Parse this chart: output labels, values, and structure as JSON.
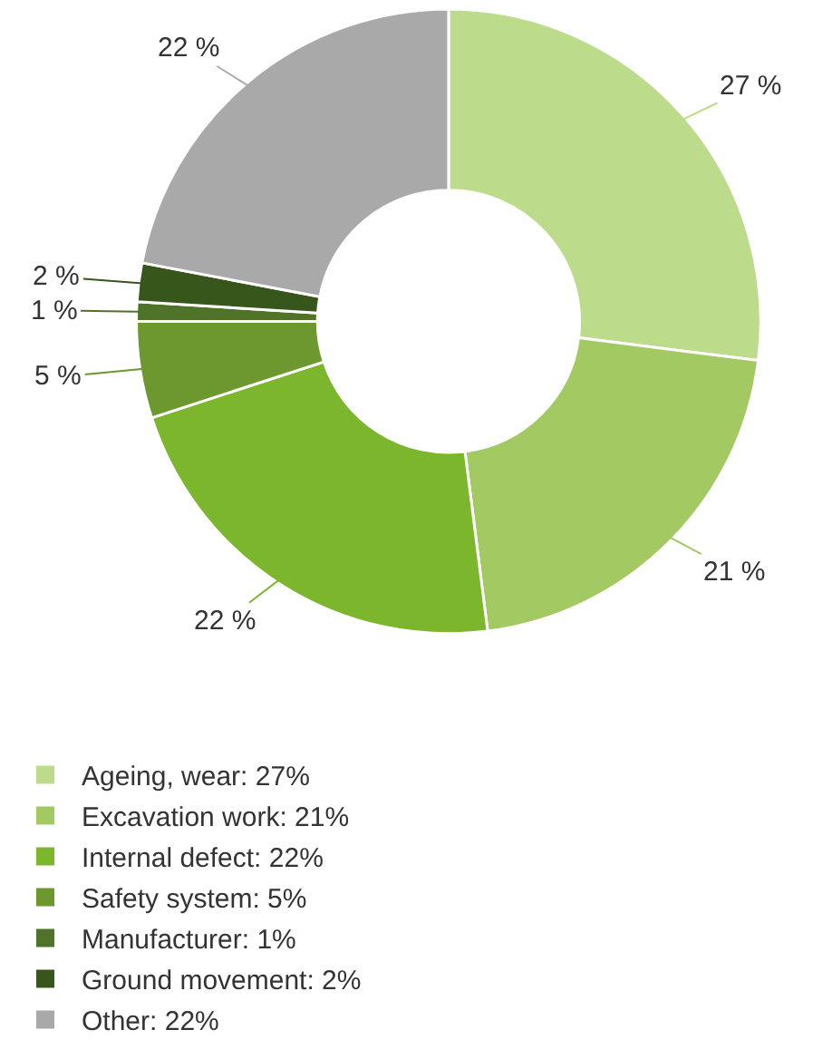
{
  "chart_data": {
    "type": "donut",
    "categories": [
      "Ageing, wear: 27%",
      "Excavation work: 21%",
      "Internal defect: 22%",
      "Safety system: 5%",
      "Manufacturer: 1%",
      "Ground movement: 2%",
      "Other: 22%"
    ],
    "values": [
      27,
      21,
      22,
      5,
      1,
      2,
      22
    ],
    "value_labels": [
      "27 %",
      "21 %",
      "22 %",
      "5 %",
      "1 %",
      "2 %",
      "22 %"
    ],
    "colors": [
      "#bcdc8c",
      "#a2c962",
      "#7bb62d",
      "#6c982f",
      "#4f7429",
      "#36561c",
      "#a9a9a9"
    ],
    "legend": "bottom"
  }
}
